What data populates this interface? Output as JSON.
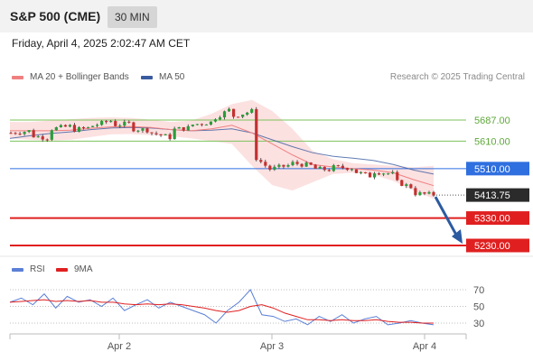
{
  "header": {
    "symbol": "S&P 500 (CME)",
    "timeframe": "30 MIN"
  },
  "datetime": "Friday, April 4, 2025 2:02:47 AM CET",
  "legend": {
    "ma20_label": "MA 20 + Bollinger Bands",
    "ma20_color": "#f08080",
    "ma50_label": "MA 50",
    "ma50_color": "#3a5ba0"
  },
  "copyright": "Research © 2025 Trading Central",
  "chart_data": [
    {
      "type": "line",
      "title": "",
      "x_tick_labels": [
        "Apr 2",
        "Apr 3",
        "Apr 4"
      ],
      "ylim": [
        5195,
        5800
      ],
      "price_path": [
        [
          5640,
          5648
        ],
        [
          5630,
          5620
        ],
        [
          5655,
          5665
        ],
        [
          5650,
          5660
        ],
        [
          5665,
          5685
        ],
        [
          5668,
          5675
        ],
        [
          5655,
          5650
        ],
        [
          5640,
          5622
        ],
        [
          5652,
          5660
        ],
        [
          5670,
          5680
        ],
        [
          5690,
          5730
        ],
        [
          5700,
          5720
        ],
        [
          5560,
          5500
        ],
        [
          5510,
          5525
        ],
        [
          5530,
          5520
        ],
        [
          5510,
          5505
        ],
        [
          5515,
          5512
        ],
        [
          5500,
          5480
        ],
        [
          5500,
          5490
        ],
        [
          5465,
          5440
        ],
        [
          5420,
          5415
        ],
        [
          5415,
          5413.75
        ]
      ],
      "ma20": [
        5648,
        5648,
        5648,
        5650,
        5657,
        5662,
        5663,
        5660,
        5652,
        5648,
        5655,
        5668,
        5640,
        5600,
        5560,
        5525,
        5516,
        5510,
        5505,
        5495,
        5470,
        5448
      ],
      "ma50": [
        5620,
        5630,
        5638,
        5644,
        5652,
        5658,
        5660,
        5658,
        5652,
        5648,
        5650,
        5655,
        5640,
        5615,
        5590,
        5568,
        5555,
        5548,
        5540,
        5525,
        5505,
        5490
      ],
      "bollinger_upper": [
        5680,
        5680,
        5685,
        5690,
        5695,
        5697,
        5695,
        5688,
        5680,
        5685,
        5710,
        5745,
        5760,
        5720,
        5655,
        5575,
        5545,
        5530,
        5525,
        5520,
        5515,
        5520
      ],
      "bollinger_lower": [
        5620,
        5615,
        5612,
        5615,
        5625,
        5635,
        5636,
        5632,
        5628,
        5620,
        5610,
        5600,
        5520,
        5450,
        5430,
        5460,
        5490,
        5495,
        5488,
        5465,
        5430,
        5400
      ],
      "support_resistance": [
        {
          "value": 5687.0,
          "label": "5687.00",
          "color": "#7cc35a",
          "kind": "resistance"
        },
        {
          "value": 5610.0,
          "label": "5610.00",
          "color": "#7cc35a",
          "kind": "resistance"
        },
        {
          "value": 5510.0,
          "label": "5510.00",
          "color": "#2f6fe0",
          "kind": "pivot"
        },
        {
          "value": 5330.0,
          "label": "5330.00",
          "color": "#e02020",
          "kind": "support"
        },
        {
          "value": 5230.0,
          "label": "5230.00",
          "color": "#e02020",
          "kind": "support"
        }
      ],
      "last_price": {
        "value": 5413.75,
        "label": "5413.75"
      },
      "projection": {
        "from": 5413.75,
        "to": 5230.0
      }
    },
    {
      "type": "line",
      "title": "",
      "series_names": [
        "RSI",
        "9MA"
      ],
      "series_colors": [
        "#5b7fd6",
        "#e02020"
      ],
      "ylim": [
        15,
        80
      ],
      "y_ticks": [
        "70",
        "50",
        "30"
      ],
      "rsi": [
        55,
        60,
        52,
        65,
        48,
        62,
        55,
        58,
        50,
        60,
        45,
        52,
        58,
        48,
        55,
        50,
        45,
        40,
        30,
        45,
        55,
        70,
        40,
        38,
        32,
        35,
        28,
        38,
        32,
        40,
        30,
        35,
        38,
        28,
        30,
        33,
        30,
        28
      ],
      "rsi_ma": [
        55,
        56,
        57,
        58,
        56,
        57,
        56,
        57,
        55,
        55,
        53,
        52,
        53,
        52,
        53,
        52,
        50,
        48,
        45,
        43,
        45,
        50,
        52,
        48,
        42,
        38,
        34,
        34,
        33,
        34,
        33,
        33,
        34,
        32,
        31,
        31,
        30,
        30
      ]
    }
  ]
}
